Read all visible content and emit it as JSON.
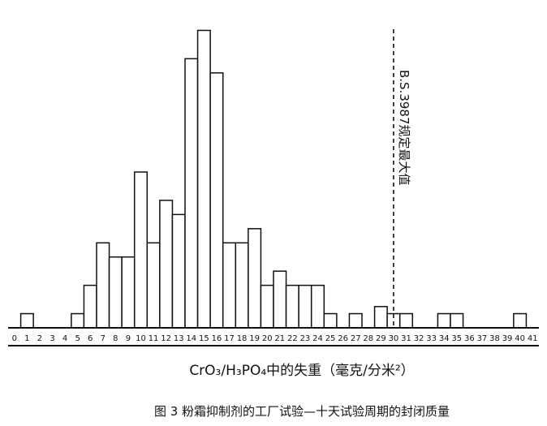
{
  "chart_data": {
    "type": "bar",
    "categories": [
      "0",
      "1",
      "2",
      "3",
      "4",
      "5",
      "6",
      "7",
      "8",
      "9",
      "10",
      "11",
      "12",
      "13",
      "14",
      "15",
      "16",
      "17",
      "18",
      "19",
      "20",
      "21",
      "22",
      "23",
      "24",
      "25",
      "26",
      "27",
      "28",
      "29",
      "30",
      "31",
      "32",
      "33",
      "34",
      "35",
      "36",
      "37",
      "38",
      "39",
      "40",
      "41"
    ],
    "values": [
      0,
      1,
      0,
      0,
      0,
      1,
      3,
      6,
      5,
      5,
      11,
      6,
      9,
      8,
      19,
      21,
      18,
      6,
      6,
      7,
      3,
      4,
      3,
      3,
      3,
      1,
      0,
      1,
      0,
      1.5,
      1,
      1,
      0,
      0,
      1,
      1,
      0,
      0,
      0,
      0,
      1,
      0
    ],
    "xlabel": "CrO₃/H₃PO₄中的失重（毫克/分米²）",
    "ylabel": "",
    "ylim": [
      0,
      22
    ],
    "grid": false,
    "annotation": {
      "text": "B.S.3987规定最大值",
      "x": 30
    },
    "caption": "图 3   粉霜抑制剂的工厂试验—十天试验周期的封闭质量"
  }
}
